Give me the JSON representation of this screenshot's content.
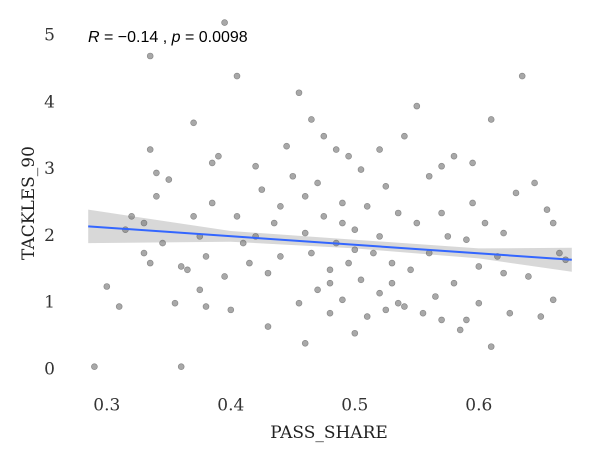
{
  "chart_data": {
    "type": "scatter",
    "annotation": [
      "R",
      " = −0.14 , ",
      "p",
      " = 0.0098"
    ],
    "xlabel": "PASS_SHARE",
    "ylabel": "TACKLES_90",
    "xlim": [
      0.28,
      0.68
    ],
    "ylim": [
      0,
      5.2
    ],
    "xticks": [
      0.3,
      0.4,
      0.5,
      0.6
    ],
    "yticks": [
      0,
      1,
      2,
      3,
      4,
      5
    ],
    "grid": false,
    "series": [
      {
        "color": "#7a7a7a",
        "x": [
          0.29,
          0.3,
          0.31,
          0.315,
          0.32,
          0.33,
          0.335,
          0.335,
          0.34,
          0.34,
          0.335,
          0.33,
          0.345,
          0.35,
          0.355,
          0.36,
          0.36,
          0.365,
          0.37,
          0.37,
          0.375,
          0.375,
          0.38,
          0.38,
          0.385,
          0.385,
          0.39,
          0.395,
          0.395,
          0.4,
          0.405,
          0.405,
          0.41,
          0.415,
          0.42,
          0.42,
          0.425,
          0.43,
          0.43,
          0.435,
          0.44,
          0.445,
          0.45,
          0.455,
          0.455,
          0.46,
          0.46,
          0.465,
          0.465,
          0.47,
          0.47,
          0.475,
          0.475,
          0.48,
          0.48,
          0.485,
          0.485,
          0.49,
          0.49,
          0.495,
          0.495,
          0.5,
          0.5,
          0.505,
          0.505,
          0.51,
          0.51,
          0.515,
          0.52,
          0.52,
          0.525,
          0.525,
          0.53,
          0.535,
          0.535,
          0.54,
          0.545,
          0.55,
          0.55,
          0.555,
          0.56,
          0.56,
          0.565,
          0.57,
          0.57,
          0.575,
          0.58,
          0.58,
          0.585,
          0.59,
          0.595,
          0.595,
          0.6,
          0.6,
          0.605,
          0.61,
          0.61,
          0.615,
          0.62,
          0.625,
          0.63,
          0.635,
          0.64,
          0.645,
          0.65,
          0.655,
          0.66,
          0.665,
          0.67,
          0.66,
          0.59,
          0.54,
          0.48,
          0.46,
          0.52,
          0.57,
          0.44,
          0.5,
          0.53,
          0.62,
          0.49
        ],
        "values": [
          0.05,
          1.25,
          0.95,
          2.1,
          2.3,
          2.2,
          4.7,
          3.3,
          2.95,
          2.6,
          1.6,
          1.75,
          1.9,
          2.85,
          1.0,
          0.05,
          1.55,
          1.5,
          3.7,
          2.3,
          2.0,
          1.2,
          1.7,
          0.95,
          2.5,
          3.1,
          3.2,
          5.2,
          1.4,
          0.9,
          2.3,
          4.4,
          1.9,
          1.6,
          3.05,
          2.0,
          2.7,
          1.45,
          0.65,
          2.2,
          1.7,
          3.35,
          2.9,
          4.15,
          1.0,
          0.4,
          2.05,
          3.75,
          1.75,
          2.8,
          1.2,
          3.5,
          2.3,
          1.5,
          0.85,
          3.3,
          1.9,
          2.5,
          1.05,
          3.2,
          1.6,
          0.55,
          2.1,
          3.0,
          1.35,
          2.45,
          0.8,
          1.75,
          3.3,
          1.15,
          2.75,
          0.9,
          1.6,
          2.35,
          1.0,
          3.5,
          1.5,
          3.95,
          2.2,
          0.85,
          1.75,
          2.9,
          1.1,
          3.05,
          0.75,
          2.0,
          3.2,
          1.3,
          0.6,
          1.95,
          3.1,
          2.5,
          1.0,
          1.55,
          2.2,
          0.35,
          3.75,
          1.7,
          2.05,
          0.85,
          2.65,
          4.4,
          1.4,
          2.8,
          0.8,
          2.4,
          1.05,
          1.75,
          1.65,
          2.2,
          0.75,
          0.95,
          1.3,
          2.6,
          2.0,
          2.35,
          2.45,
          1.8,
          1.3,
          1.45,
          2.2
        ]
      }
    ],
    "fit": {
      "color": "#3366ff",
      "x": [
        0.285,
        0.675
      ],
      "values": [
        2.15,
        1.65
      ]
    },
    "band": {
      "color": "#c8c8c8",
      "x": [
        0.285,
        0.4,
        0.5,
        0.6,
        0.675
      ],
      "lower": [
        1.9,
        1.92,
        1.82,
        1.67,
        1.47
      ],
      "upper": [
        2.4,
        2.08,
        1.95,
        1.82,
        1.83
      ]
    }
  }
}
